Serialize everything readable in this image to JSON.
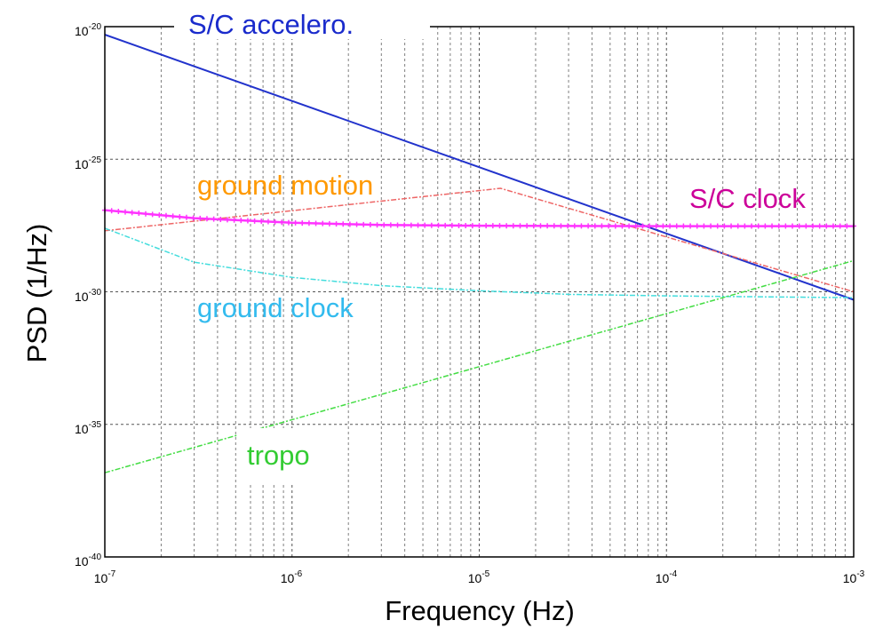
{
  "chart_data": {
    "type": "line",
    "xlabel": "Frequency (Hz)",
    "ylabel": "PSD (1/Hz)",
    "x_scale": "log",
    "y_scale": "log",
    "xlim": [
      1e-07,
      0.001
    ],
    "ylim": [
      1e-40,
      1e-20
    ],
    "grid": true,
    "x_ticks": [
      {
        "base": "10",
        "exp": "-7",
        "value": 1e-07
      },
      {
        "base": "10",
        "exp": "-6",
        "value": 1e-06
      },
      {
        "base": "10",
        "exp": "-5",
        "value": 1e-05
      },
      {
        "base": "10",
        "exp": "-4",
        "value": 0.0001
      },
      {
        "base": "10",
        "exp": "-3",
        "value": 0.001
      }
    ],
    "y_ticks": [
      {
        "base": "10",
        "exp": "-20",
        "value": 1e-20
      },
      {
        "base": "10",
        "exp": "-25",
        "value": 1e-25
      },
      {
        "base": "10",
        "exp": "-30",
        "value": 1e-30
      },
      {
        "base": "10",
        "exp": "-35",
        "value": 1e-35
      },
      {
        "base": "10",
        "exp": "-40",
        "value": 1e-40
      }
    ],
    "series": [
      {
        "name": "S/C accelero.",
        "color": "#2233cc",
        "style": "solid",
        "x": [
          1e-07,
          0.001
        ],
        "y": [
          5e-21,
          5e-31
        ]
      },
      {
        "name": "ground motion",
        "color": "#ff9900",
        "line_color": "#ee6666",
        "style": "dashdot",
        "x": [
          1e-07,
          1.3e-05,
          0.001
        ],
        "y": [
          2e-28,
          8e-27,
          1e-30
        ]
      },
      {
        "name": "S/C clock",
        "color": "#cc0099",
        "line_color": "#ff33ff",
        "style": "markers",
        "x": [
          1e-07,
          3e-07,
          1e-06,
          3e-06,
          1e-05,
          0.0001,
          0.001
        ],
        "y": [
          1.2e-27,
          6e-28,
          4e-28,
          3.3e-28,
          3.1e-28,
          3e-28,
          3e-28
        ]
      },
      {
        "name": "ground clock",
        "color": "#33bbee",
        "line_color": "#44dddd",
        "style": "dashdot",
        "x": [
          1e-07,
          3e-07,
          1e-06,
          3e-06,
          1e-05,
          3e-05,
          0.0001,
          0.0003,
          0.001
        ],
        "y": [
          2.5e-28,
          1.3e-29,
          3.5e-30,
          1.7e-30,
          1.1e-30,
          8e-31,
          7e-31,
          6.5e-31,
          6e-31
        ]
      },
      {
        "name": "tropo",
        "color": "#33cc33",
        "line_color": "#44dd44",
        "style": "dashdot",
        "x": [
          1e-07,
          0.001
        ],
        "y": [
          1.5e-37,
          1.5e-29
        ]
      }
    ]
  }
}
